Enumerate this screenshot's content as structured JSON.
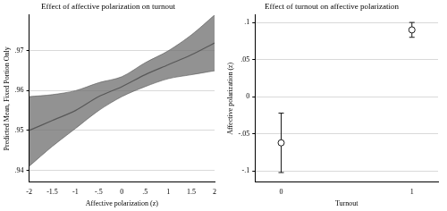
{
  "chart_data": [
    {
      "type": "line",
      "title": "Effect of affective polarization on turnout",
      "x_label": "Affective polarization (z)",
      "y_label": "Predicted Mean, Fixed Portion Only",
      "x": [
        -2,
        -1.5,
        -1,
        -0.5,
        0,
        0.5,
        1,
        1.5,
        2
      ],
      "values": [
        0.95,
        0.9525,
        0.955,
        0.9585,
        0.961,
        0.964,
        0.9665,
        0.969,
        0.972
      ],
      "ci_lower": [
        0.941,
        0.946,
        0.9505,
        0.955,
        0.9585,
        0.961,
        0.963,
        0.964,
        0.965
      ],
      "ci_upper": [
        0.9585,
        0.959,
        0.96,
        0.962,
        0.9635,
        0.967,
        0.97,
        0.974,
        0.979
      ],
      "color": "#1a1a1a",
      "xlim": [
        -2,
        2
      ],
      "xticks": [
        -2,
        -1.5,
        -1,
        {
          "value": -0.5,
          "label": "-.5"
        },
        0,
        {
          "value": 0.5,
          "label": ".5"
        },
        1,
        1.5,
        2
      ],
      "ylim": [
        0.937,
        0.979
      ],
      "yticks": [
        {
          "value": 0.94,
          "label": ".94"
        },
        {
          "value": 0.95,
          "label": ".95"
        },
        {
          "value": 0.96,
          "label": ".96"
        },
        {
          "value": 0.97,
          "label": ".97"
        }
      ],
      "grid": true
    },
    {
      "type": "scatter",
      "title": "Effect of turnout on affective polarization",
      "x_label": "Turnout",
      "y_label": "Affective polarization (z)",
      "x": [
        0,
        1
      ],
      "values": [
        -0.062,
        0.09
      ],
      "error_lower": [
        -0.102,
        0.08
      ],
      "error_upper": [
        -0.022,
        0.1
      ],
      "color": "#1a1a1a",
      "marker": "circle",
      "xlim": [
        -0.2,
        1.2
      ],
      "xticks": [
        0,
        1
      ],
      "ylim": [
        -0.115,
        0.11
      ],
      "yticks": [
        {
          "value": -0.1,
          "label": "-.1"
        },
        {
          "value": -0.05,
          "label": "-.05"
        },
        0,
        {
          "value": 0.05,
          "label": ".05"
        },
        {
          "value": 0.1,
          "label": ".1"
        }
      ],
      "grid": true
    }
  ]
}
